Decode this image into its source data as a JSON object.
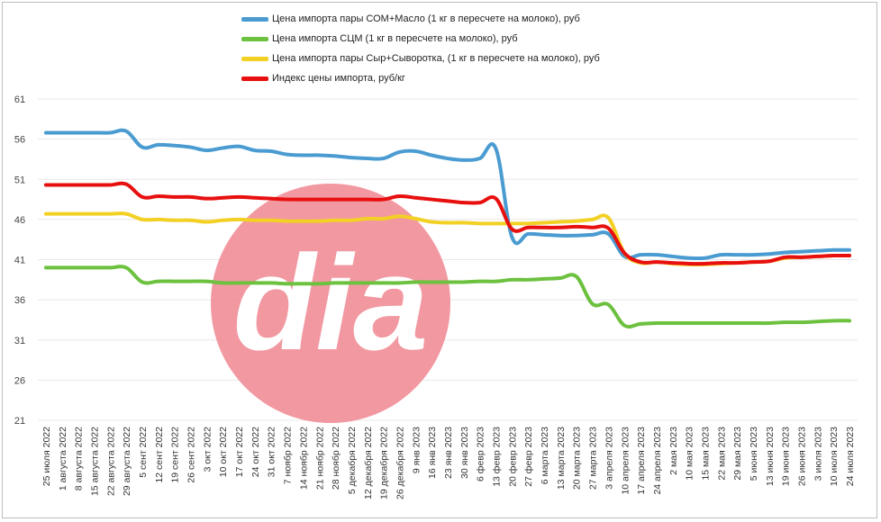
{
  "chart_data": {
    "type": "line",
    "ylim": [
      21,
      61
    ],
    "yticks": [
      21,
      26,
      31,
      36,
      41,
      46,
      51,
      56,
      61
    ],
    "categories": [
      "25 июля 2022",
      "1 августа 2022",
      "8 августа 2022",
      "15 августа 2022",
      "22 августа 2022",
      "29 августа 2022",
      "5 сент 2022",
      "12 сент 2022",
      "19 сент 2022",
      "26 сент 2022",
      "3 окт 2022",
      "10 окт 2022",
      "17 окт 2022",
      "24 окт 2022",
      "31 окт 2022",
      "7 ноябр 2022",
      "14 ноябр 2022",
      "21 ноябр 2022",
      "28 ноябр 2022",
      "5 декабря 2022",
      "12 декабря 2022",
      "19 декабря 2022",
      "26 декабря 2022",
      "9 янв 2023",
      "16 янв 2023",
      "23 янв 2023",
      "30 янв 2023",
      "6 февр 2023",
      "13 февр 2023",
      "20 февр 2023",
      "27 февр 2023",
      "6 марта 2023",
      "13 марта 2023",
      "20 марта 2023",
      "27 марта 2023",
      "3 апреля 2023",
      "10 апреля 2023",
      "17 апреля 2023",
      "24 апреля 2023",
      "2 мая 2023",
      "10 мая 2023",
      "15 мая 2023",
      "22 мая 2023",
      "29 мая 2023",
      "5 июня 2023",
      "13 июня 2023",
      "19 июня 2023",
      "26 июня 2023",
      "3 июля 2023",
      "10 июля 2023",
      "24 июля 2023"
    ],
    "series": [
      {
        "name": "Цена импорта пары СОМ+Масло (1 кг в пересчете на молоко), руб",
        "color": "#4a9bd1",
        "values": [
          56.8,
          56.8,
          56.8,
          56.8,
          56.8,
          57.0,
          55.0,
          55.3,
          55.2,
          55.0,
          54.6,
          54.9,
          55.1,
          54.6,
          54.5,
          54.1,
          54.0,
          54.0,
          53.9,
          53.7,
          53.6,
          53.6,
          54.4,
          54.5,
          54.0,
          53.6,
          53.4,
          53.6,
          54.8,
          43.8,
          44.2,
          44.1,
          44.0,
          44.0,
          44.1,
          44.2,
          41.4,
          41.6,
          41.6,
          41.4,
          41.2,
          41.2,
          41.6,
          41.6,
          41.6,
          41.7,
          41.9,
          42.0,
          42.1,
          42.2,
          42.2
        ]
      },
      {
        "name": "Цена импорта СЦМ (1 кг в пересчете на молоко), руб",
        "color": "#6cc13e",
        "values": [
          40.0,
          40.0,
          40.0,
          40.0,
          40.0,
          40.0,
          38.2,
          38.3,
          38.3,
          38.3,
          38.3,
          38.1,
          38.1,
          38.1,
          38.1,
          38.0,
          38.0,
          38.0,
          38.1,
          38.1,
          38.1,
          38.1,
          38.1,
          38.2,
          38.2,
          38.2,
          38.2,
          38.3,
          38.3,
          38.5,
          38.5,
          38.6,
          38.7,
          38.9,
          35.5,
          35.4,
          32.8,
          33.0,
          33.1,
          33.1,
          33.1,
          33.1,
          33.1,
          33.1,
          33.1,
          33.1,
          33.2,
          33.2,
          33.3,
          33.4,
          33.4
        ]
      },
      {
        "name": "Цена импорта пары Сыр+Сыворотка, (1 кг в пересчете на молоко), руб",
        "color": "#f2d024",
        "values": [
          46.7,
          46.7,
          46.7,
          46.7,
          46.7,
          46.7,
          46.0,
          46.0,
          45.9,
          45.9,
          45.7,
          45.9,
          46.0,
          45.9,
          45.9,
          45.8,
          45.8,
          45.8,
          45.9,
          45.9,
          46.1,
          46.1,
          46.4,
          46.1,
          45.7,
          45.6,
          45.6,
          45.5,
          45.5,
          45.5,
          45.5,
          45.6,
          45.7,
          45.8,
          46.0,
          46.2,
          41.8,
          40.6,
          40.7,
          40.5,
          40.4,
          40.4,
          40.5,
          40.6,
          40.7,
          40.8,
          41.2,
          41.3,
          41.4,
          41.5,
          41.5
        ]
      },
      {
        "name": "Индекс цены импорта, руб/кг",
        "color": "#e80f0f",
        "values": [
          50.3,
          50.3,
          50.3,
          50.3,
          50.3,
          50.4,
          48.8,
          48.9,
          48.8,
          48.8,
          48.6,
          48.7,
          48.8,
          48.7,
          48.6,
          48.5,
          48.5,
          48.5,
          48.5,
          48.5,
          48.5,
          48.5,
          48.9,
          48.7,
          48.5,
          48.3,
          48.1,
          48.1,
          48.6,
          44.8,
          45.0,
          45.0,
          45.0,
          45.1,
          45.0,
          44.9,
          41.8,
          40.7,
          40.7,
          40.6,
          40.5,
          40.5,
          40.6,
          40.6,
          40.7,
          40.8,
          41.3,
          41.3,
          41.4,
          41.5,
          41.5
        ]
      }
    ]
  },
  "watermark": {
    "text": "dia",
    "color": "#f08a94"
  }
}
